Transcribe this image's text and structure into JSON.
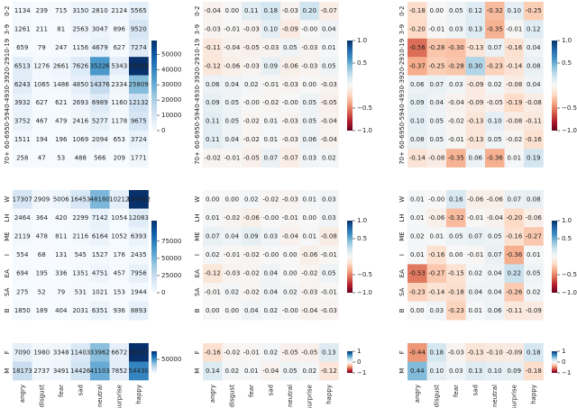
{
  "chart_data": [
    {
      "type": "heatmap",
      "rows": [
        "0-2",
        "3-9",
        "10-19",
        "20-29",
        "30-39",
        "40-49",
        "50-59",
        "60-69",
        "70+"
      ],
      "cmap": "Blues",
      "clim": [
        0,
        59069
      ],
      "cticks": [
        0,
        10000,
        20000,
        30000,
        40000,
        50000
      ],
      "values": [
        [
          1134,
          239,
          715,
          3150,
          2810,
          2124,
          5565
        ],
        [
          1261,
          211,
          81,
          2563,
          3047,
          896,
          9520
        ],
        [
          659,
          79,
          247,
          1156,
          4679,
          627,
          7274
        ],
        [
          6513,
          1276,
          2661,
          7626,
          35226,
          5343,
          59069
        ],
        [
          6243,
          1065,
          1486,
          4850,
          14376,
          2334,
          25809
        ],
        [
          3932,
          627,
          621,
          2693,
          6989,
          1160,
          12132
        ],
        [
          3752,
          467,
          479,
          2416,
          5277,
          1178,
          9675
        ],
        [
          1511,
          194,
          196,
          1069,
          2094,
          653,
          3724
        ],
        [
          258,
          47,
          53,
          488,
          566,
          209,
          1771
        ]
      ]
    },
    {
      "type": "heatmap",
      "rows": [
        "0-2",
        "3-9",
        "10-19",
        "20-29",
        "30-39",
        "40-49",
        "50-59",
        "60-69",
        "70+"
      ],
      "cmap": "RdBu",
      "clim": [
        -1,
        1
      ],
      "cticks": [
        {
          "value": -1.0,
          "label": "−1.0"
        },
        {
          "value": -0.5,
          "label": "−0.5"
        },
        0.5,
        {
          "value": 1.0,
          "label": "1.0"
        }
      ],
      "values": [
        [
          -0.04,
          0,
          0.11,
          0.18,
          -0.03,
          0.2,
          -0.07
        ],
        [
          -0.03,
          -0.01,
          -0.03,
          0.1,
          -0.09,
          0,
          0.04
        ],
        [
          -0.11,
          -0.04,
          -0.05,
          -0.03,
          0.05,
          -0.03,
          0.01
        ],
        [
          -0.12,
          -0.06,
          -0.03,
          0.09,
          -0.06,
          -0.03,
          0.05
        ],
        [
          0.06,
          0.04,
          0.02,
          -0.01,
          -0.03,
          0,
          -0.03
        ],
        [
          0.09,
          0.05,
          0,
          -0.02,
          0,
          0.05,
          -0.05
        ],
        [
          0.11,
          0.05,
          -0.02,
          0.01,
          -0.03,
          0.05,
          -0.04
        ],
        [
          0.11,
          0.04,
          -0.02,
          0.01,
          -0.03,
          0.06,
          -0.04
        ],
        [
          -0.02,
          -0.01,
          -0.05,
          0.07,
          -0.07,
          0.03,
          0.02
        ]
      ],
      "value_labels": [
        [
          "-0.04",
          "0.00",
          "0.11",
          "0.18",
          "-0.03",
          "0.20",
          "-0.07"
        ],
        [
          "-0.03",
          "-0.01",
          "-0.03",
          "0.10",
          "-0.09",
          "-0.00",
          "0.04"
        ],
        [
          "-0.11",
          "-0.04",
          "-0.05",
          "-0.03",
          "0.05",
          "-0.03",
          "0.01"
        ],
        [
          "-0.12",
          "-0.06",
          "-0.03",
          "0.09",
          "-0.06",
          "-0.03",
          "0.05"
        ],
        [
          "0.06",
          "0.04",
          "0.02",
          "-0.01",
          "-0.03",
          "0.00",
          "-0.03"
        ],
        [
          "0.09",
          "0.05",
          "-0.00",
          "-0.02",
          "-0.00",
          "0.05",
          "-0.05"
        ],
        [
          "0.11",
          "0.05",
          "-0.02",
          "0.01",
          "-0.03",
          "0.05",
          "-0.04"
        ],
        [
          "0.11",
          "0.04",
          "-0.02",
          "0.01",
          "-0.03",
          "0.06",
          "-0.04"
        ],
        [
          "-0.02",
          "-0.01",
          "-0.05",
          "0.07",
          "-0.07",
          "0.03",
          "0.02"
        ]
      ]
    },
    {
      "type": "heatmap",
      "rows": [
        "0-2",
        "3-9",
        "10-19",
        "20-29",
        "30-39",
        "40-49",
        "50-59",
        "60-69",
        "70+"
      ],
      "cmap": "RdBu",
      "clim": [
        -1,
        1
      ],
      "cticks": [
        {
          "value": -1.0,
          "label": "−1.0"
        },
        {
          "value": -0.5,
          "label": "−0.5"
        },
        0.5,
        {
          "value": 1.0,
          "label": "1.0"
        }
      ],
      "values": [
        [
          -0.18,
          0,
          0.05,
          0.12,
          -0.32,
          0.1,
          -0.25
        ],
        [
          -0.2,
          -0.01,
          0.03,
          0.13,
          -0.35,
          -0.01,
          0.12
        ],
        [
          -0.56,
          -0.28,
          -0.3,
          -0.13,
          0.07,
          -0.16,
          0.04
        ],
        [
          -0.37,
          -0.25,
          -0.28,
          0.3,
          -0.23,
          -0.14,
          0.08
        ],
        [
          0.06,
          0.07,
          0.03,
          -0.09,
          0.02,
          -0.08,
          0.04
        ],
        [
          0.09,
          0.04,
          -0.04,
          -0.09,
          -0.05,
          -0.19,
          -0.08
        ],
        [
          0.1,
          0.05,
          -0.02,
          -0.13,
          0.1,
          -0.08,
          -0.11
        ],
        [
          0.08,
          0.05,
          -0.01,
          -0.13,
          0.05,
          -0.02,
          -0.16
        ],
        [
          -0.14,
          -0.08,
          -0.35,
          0.06,
          -0.36,
          0.01,
          0.19
        ]
      ],
      "value_labels": [
        [
          "-0.18",
          "0.00",
          "0.05",
          "0.12",
          "-0.32",
          "0.10",
          "-0.25"
        ],
        [
          "-0.20",
          "-0.01",
          "0.03",
          "0.13",
          "-0.35",
          "-0.01",
          "0.12"
        ],
        [
          "-0.56",
          "-0.28",
          "-0.30",
          "-0.13",
          "0.07",
          "-0.16",
          "0.04"
        ],
        [
          "-0.37",
          "-0.25",
          "-0.28",
          "0.30",
          "-0.23",
          "-0.14",
          "0.08"
        ],
        [
          "0.06",
          "0.07",
          "0.03",
          "-0.09",
          "0.02",
          "-0.08",
          "0.04"
        ],
        [
          "0.09",
          "0.04",
          "-0.04",
          "-0.09",
          "-0.05",
          "-0.19",
          "-0.08"
        ],
        [
          "0.10",
          "0.05",
          "-0.02",
          "-0.13",
          "0.10",
          "-0.08",
          "-0.11"
        ],
        [
          "0.08",
          "0.05",
          "-0.01",
          "-0.13",
          "0.05",
          "-0.02",
          "-0.16"
        ],
        [
          "-0.14",
          "-0.08",
          "-0.35",
          "0.06",
          "-0.36",
          "0.01",
          "0.19"
        ]
      ]
    },
    {
      "type": "heatmap",
      "rows": [
        "W",
        "LH",
        "ME",
        "I",
        "EA",
        "SA",
        "B"
      ],
      "cmap": "Blues",
      "clim": [
        0,
        104862
      ],
      "cticks": [
        0,
        25000,
        50000,
        75000
      ],
      "values": [
        [
          17307,
          2909,
          5006,
          16453,
          48180,
          10212,
          104862
        ],
        [
          2464,
          364,
          420,
          2299,
          7142,
          1054,
          12083
        ],
        [
          2119,
          478,
          811,
          2116,
          6164,
          1052,
          6393
        ],
        [
          554,
          68,
          131,
          545,
          1527,
          176,
          2435
        ],
        [
          694,
          195,
          336,
          1351,
          4751,
          457,
          7956
        ],
        [
          275,
          52,
          79,
          531,
          1021,
          153,
          1944
        ],
        [
          1850,
          189,
          404,
          2031,
          6351,
          936,
          8893
        ]
      ]
    },
    {
      "type": "heatmap",
      "rows": [
        "W",
        "LH",
        "ME",
        "I",
        "EA",
        "SA",
        "B"
      ],
      "cmap": "RdBu",
      "clim": [
        -1,
        1
      ],
      "cticks": [
        {
          "value": -1.0,
          "label": "−1.0"
        },
        {
          "value": -0.5,
          "label": "−0.5"
        },
        0.5,
        {
          "value": 1.0,
          "label": "1.0"
        }
      ],
      "values": [
        [
          0,
          0,
          0.02,
          -0.02,
          -0.03,
          0.01,
          0.03
        ],
        [
          0.01,
          -0.02,
          -0.06,
          0,
          -0.01,
          0,
          0.03
        ],
        [
          0.07,
          0.04,
          0.09,
          0.03,
          -0.04,
          0.01,
          -0.08
        ],
        [
          0.02,
          -0.01,
          -0.02,
          0,
          0,
          -0.06,
          -0.01
        ],
        [
          -0.12,
          -0.03,
          -0.02,
          0.04,
          0,
          -0.02,
          0.05
        ],
        [
          -0.01,
          0.02,
          -0.02,
          0.04,
          0.02,
          -0.03,
          -0.01
        ],
        [
          0,
          0,
          0.04,
          0.02,
          0,
          -0.04,
          -0.03
        ]
      ],
      "value_labels": [
        [
          "0.00",
          "0.00",
          "0.02",
          "-0.02",
          "-0.03",
          "0.01",
          "0.03"
        ],
        [
          "0.01",
          "-0.02",
          "-0.06",
          "-0.00",
          "-0.01",
          "0.00",
          "0.03"
        ],
        [
          "0.07",
          "0.04",
          "0.09",
          "0.03",
          "-0.04",
          "0.01",
          "-0.08"
        ],
        [
          "0.02",
          "-0.01",
          "-0.02",
          "-0.00",
          "0.00",
          "-0.06",
          "-0.01"
        ],
        [
          "-0.12",
          "-0.03",
          "-0.02",
          "0.04",
          "0.00",
          "-0.02",
          "0.05"
        ],
        [
          "-0.01",
          "0.02",
          "-0.02",
          "0.04",
          "0.02",
          "-0.03",
          "-0.01"
        ],
        [
          "0.00",
          "0.00",
          "0.04",
          "0.02",
          "-0.00",
          "-0.04",
          "-0.03"
        ]
      ]
    },
    {
      "type": "heatmap",
      "rows": [
        "W",
        "LH",
        "ME",
        "I",
        "EA",
        "SA",
        "B"
      ],
      "cmap": "RdBu",
      "clim": [
        -1,
        1
      ],
      "cticks": [
        {
          "value": -1.0,
          "label": "−1.0"
        },
        {
          "value": -0.5,
          "label": "−0.5"
        },
        0.5,
        {
          "value": 1.0,
          "label": "1.0"
        }
      ],
      "values": [
        [
          0.01,
          0,
          0.16,
          -0.06,
          -0.06,
          0.07,
          0.08
        ],
        [
          0.01,
          -0.06,
          -0.32,
          -0.01,
          -0.04,
          -0.2,
          -0.06
        ],
        [
          0.02,
          0.01,
          0.05,
          0.07,
          0.05,
          -0.16,
          -0.27
        ],
        [
          0.01,
          -0.16,
          0,
          -0.01,
          0.07,
          -0.36,
          0.01
        ],
        [
          -0.53,
          -0.27,
          -0.15,
          0.02,
          0.04,
          0.22,
          0.05
        ],
        [
          -0.23,
          -0.14,
          -0.18,
          0.04,
          0.04,
          -0.26,
          0.02
        ],
        [
          0,
          0.03,
          -0.23,
          0.01,
          0.06,
          -0.11,
          -0.09
        ]
      ],
      "value_labels": [
        [
          "0.01",
          "-0.00",
          "0.16",
          "-0.06",
          "-0.06",
          "0.07",
          "0.08"
        ],
        [
          "0.01",
          "-0.06",
          "-0.32",
          "-0.01",
          "-0.04",
          "-0.20",
          "-0.06"
        ],
        [
          "0.02",
          "0.01",
          "0.05",
          "0.07",
          "0.05",
          "-0.16",
          "-0.27"
        ],
        [
          "0.01",
          "-0.16",
          "0.00",
          "-0.01",
          "0.07",
          "-0.36",
          "0.01"
        ],
        [
          "-0.53",
          "-0.27",
          "-0.15",
          "0.02",
          "0.04",
          "0.22",
          "0.05"
        ],
        [
          "-0.23",
          "-0.14",
          "-0.18",
          "0.04",
          "0.04",
          "-0.26",
          "0.02"
        ],
        [
          "0.00",
          "0.03",
          "-0.23",
          "0.01",
          "0.06",
          "-0.11",
          "-0.09"
        ]
      ]
    },
    {
      "type": "heatmap",
      "rows": [
        "F",
        "M"
      ],
      "categories": [
        "angry",
        "disgust",
        "fear",
        "sad",
        "neutral",
        "surprise",
        "happy"
      ],
      "cmap": "Blues",
      "clim": [
        0,
        80107
      ],
      "cticks": [
        50000
      ],
      "values": [
        [
          7090,
          1980,
          3348,
          11403,
          33962,
          6672,
          80107
        ],
        [
          18173,
          2737,
          3491,
          14426,
          41103,
          7852,
          54430
        ]
      ]
    },
    {
      "type": "heatmap",
      "rows": [
        "F",
        "M"
      ],
      "categories": [
        "angry",
        "disgust",
        "fear",
        "sad",
        "neutral",
        "surprise",
        "happy"
      ],
      "cmap": "RdBu",
      "clim": [
        -1,
        1
      ],
      "cticks": [
        {
          "value": -1,
          "label": "−1"
        },
        0,
        1
      ],
      "values": [
        [
          -0.16,
          -0.02,
          -0.01,
          0.02,
          -0.05,
          -0.05,
          0.13
        ],
        [
          0.14,
          0.02,
          0.01,
          -0.04,
          0.05,
          0.02,
          -0.12
        ]
      ],
      "value_labels": [
        [
          "-0.16",
          "-0.02",
          "-0.01",
          "0.02",
          "-0.05",
          "-0.05",
          "0.13"
        ],
        [
          "0.14",
          "0.02",
          "0.01",
          "-0.04",
          "0.05",
          "0.02",
          "-0.12"
        ]
      ]
    },
    {
      "type": "heatmap",
      "rows": [
        "F",
        "M"
      ],
      "categories": [
        "angry",
        "disgust",
        "fear",
        "sad",
        "neutral",
        "surprise",
        "happy"
      ],
      "cmap": "RdBu",
      "clim": [
        -1,
        1
      ],
      "cticks": [
        {
          "value": -1,
          "label": "−1"
        },
        0,
        1
      ],
      "values": [
        [
          -0.44,
          0.18,
          -0.03,
          -0.13,
          -0.1,
          -0.09,
          0.18
        ],
        [
          0.44,
          0.1,
          0.03,
          0.13,
          0.1,
          0.09,
          -0.18
        ]
      ],
      "value_labels": [
        [
          "-0.44",
          "0.18",
          "-0.03",
          "-0.13",
          "-0.10",
          "-0.09",
          "0.18"
        ],
        [
          "0.44",
          "0.10",
          "0.03",
          "0.13",
          "0.10",
          "0.09",
          "-0.18"
        ]
      ]
    }
  ]
}
